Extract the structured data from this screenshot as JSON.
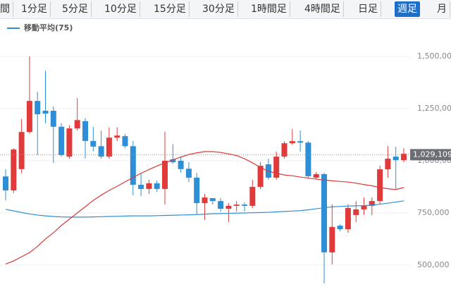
{
  "toolbar": {
    "tabs": [
      "間",
      "1分足",
      "5分足",
      "10分足",
      "15分足",
      "30分足",
      "1時間足",
      "4時間足",
      "日足",
      "週足",
      "月"
    ],
    "selected": "週足"
  },
  "chart_data": {
    "type": "candlestick",
    "up_color": "#e03a3a",
    "down_color": "#2f8fd6",
    "open": [
      925000,
      858000,
      960000,
      1138000,
      1287000,
      1240000,
      1240000,
      1163000,
      1020000,
      1155000,
      1190000,
      1095000,
      1070000,
      1020000,
      1111000,
      1118000,
      1070000,
      885000,
      865000,
      892000,
      865000,
      1007000,
      1000000,
      962000,
      919000,
      797000,
      821000,
      807000,
      770000,
      784000,
      790000,
      784000,
      875000,
      983000,
      919000,
      1020000,
      1084000,
      1094000,
      1087000,
      919000,
      936000,
      561000,
      689000,
      672000,
      740000,
      767000,
      784000,
      807000,
      959000,
      1020000,
      1003000
    ],
    "high": [
      960000,
      1060000,
      1200000,
      1500000,
      1330000,
      1431000,
      1260000,
      1180000,
      1170000,
      1300000,
      1205000,
      1163000,
      1145000,
      1160000,
      1160000,
      1128000,
      1095000,
      942000,
      909000,
      905000,
      1139000,
      1080000,
      1020000,
      993000,
      942000,
      841000,
      821000,
      821000,
      797000,
      807000,
      800000,
      909000,
      993000,
      1010000,
      1044000,
      1094000,
      1152000,
      1145000,
      1094000,
      946000,
      942000,
      791000,
      696000,
      791000,
      807000,
      824000,
      824000,
      976000,
      1071000,
      1067000,
      1060000
    ],
    "low": [
      810000,
      845000,
      940000,
      1130000,
      1027000,
      1180000,
      990000,
      1020000,
      1010000,
      1145000,
      1010000,
      1045000,
      1010000,
      1010000,
      1095000,
      1060000,
      835000,
      831000,
      841000,
      850000,
      790000,
      985000,
      943000,
      898000,
      740000,
      716000,
      790000,
      756000,
      706000,
      757000,
      757000,
      773000,
      865000,
      909000,
      909000,
      1010000,
      1077000,
      1044000,
      919000,
      912000,
      412000,
      503000,
      662000,
      655000,
      706000,
      740000,
      740000,
      790000,
      919000,
      865000,
      993000
    ],
    "close": [
      858000,
      1054000,
      1138000,
      1287000,
      1223000,
      1226000,
      1163000,
      1027000,
      1155000,
      1195000,
      1095000,
      1068000,
      1020000,
      1111000,
      1121000,
      1070000,
      885000,
      865000,
      892000,
      865000,
      1000000,
      993000,
      960000,
      919000,
      797000,
      824000,
      807000,
      770000,
      784000,
      790000,
      784000,
      875000,
      976000,
      919000,
      1020000,
      1084000,
      1094000,
      1087000,
      926000,
      936000,
      561000,
      683000,
      672000,
      774000,
      767000,
      784000,
      807000,
      959000,
      1010000,
      1003000,
      1034000
    ],
    "series": [
      {
        "name": "移動平均(75)",
        "color": "#2f8fd6",
        "values": [
          767000,
          760000,
          752000,
          745000,
          740000,
          736000,
          733000,
          731000,
          730000,
          730000,
          730000,
          731000,
          732000,
          733000,
          734000,
          735000,
          736000,
          736000,
          736000,
          737000,
          738000,
          739000,
          740000,
          741000,
          742000,
          744000,
          746000,
          747000,
          748000,
          749000,
          750000,
          751000,
          752000,
          753000,
          755000,
          757000,
          759000,
          761000,
          765000,
          770000,
          775000,
          779000,
          781000,
          783000,
          784000,
          785000,
          788000,
          792000,
          797000,
          802000,
          808000
        ]
      },
      {
        "color": "#d83a3a",
        "values": [
          505000,
          520000,
          540000,
          560000,
          590000,
          625000,
          655000,
          690000,
          720000,
          750000,
          780000,
          810000,
          835000,
          858000,
          878000,
          899000,
          920000,
          940000,
          958000,
          975000,
          990000,
          1005000,
          1018000,
          1030000,
          1038000,
          1044000,
          1044000,
          1040000,
          1033000,
          1025000,
          1010000,
          990000,
          968000,
          950000,
          940000,
          932000,
          928000,
          922000,
          917000,
          912000,
          908000,
          904000,
          901000,
          898000,
          893000,
          886000,
          880000,
          872000,
          866000,
          862000,
          872000
        ]
      }
    ],
    "ylim": [
      395000,
      1676000
    ],
    "yticks": [
      {
        "value": 500000,
        "label": "500,000"
      },
      {
        "value": 750000,
        "label": "750,000"
      },
      {
        "value": 1000000,
        "label": "1,000,000"
      },
      {
        "value": 1250000,
        "label": "1,250,000"
      },
      {
        "value": 1500000,
        "label": "1,500,000"
      }
    ],
    "last_price": {
      "value": 1029109,
      "label": "1,029,109"
    },
    "grid": true
  }
}
